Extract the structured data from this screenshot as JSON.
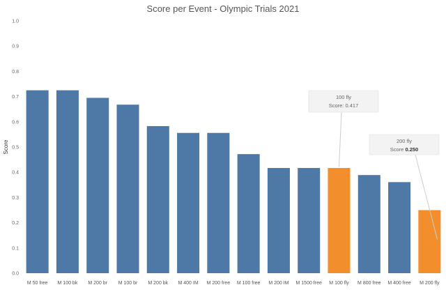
{
  "chart_data": {
    "type": "bar",
    "title": "Score per Event - Olympic Trials 2021",
    "xlabel": "",
    "ylabel": "Score",
    "ylim": [
      0,
      1.0
    ],
    "yticks": [
      "0.0",
      "0.1",
      "0.2",
      "0.3",
      "0.4",
      "0.5",
      "0.6",
      "0.7",
      "0.8",
      "0.9",
      "1.0"
    ],
    "grid": false,
    "categories": [
      "M 50 free",
      "M 100 bk",
      "M 200 br",
      "M 100 br",
      "M 200 bk",
      "M 400 IM",
      "M 200 free",
      "M 100 free",
      "M 200 IM",
      "M 1500 free",
      "M 100 fly",
      "M 800 free",
      "M 400 free",
      "M 200 fly"
    ],
    "values": [
      0.725,
      0.725,
      0.695,
      0.668,
      0.583,
      0.556,
      0.556,
      0.472,
      0.417,
      0.417,
      0.417,
      0.389,
      0.361,
      0.25
    ],
    "highlighted": [
      "M 100 fly",
      "M 200 fly"
    ],
    "colors": {
      "default": "#4e79a7",
      "highlight": "#f28e2b"
    },
    "annotations": [
      {
        "category": "M 100 fly",
        "name": "100 fly",
        "label": "Score:",
        "value": "0.417",
        "bold": false
      },
      {
        "category": "M 200 fly",
        "name": "200 fly",
        "label": "Score",
        "value": "0.250",
        "bold": true
      }
    ]
  }
}
